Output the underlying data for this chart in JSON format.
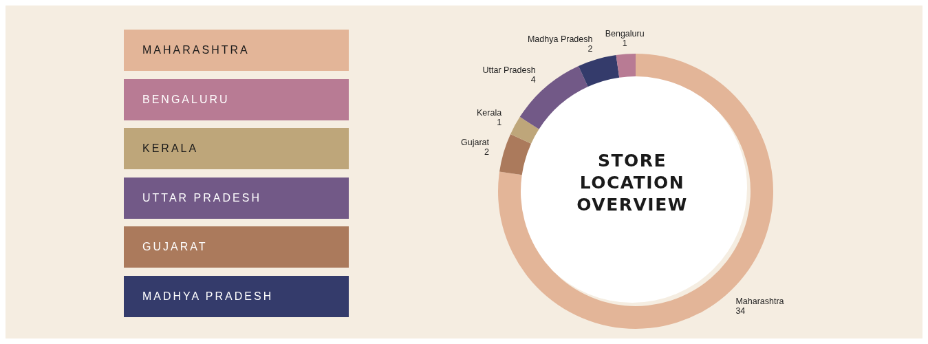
{
  "chart_data": [
    {
      "type": "other",
      "annotations": [
        "MAHARASHTRA",
        "BENGALURU",
        "KERALA",
        "UTTAR PRADESH",
        "GUJARAT",
        "MADHYA PRADESH"
      ],
      "colors": [
        "#e3b598",
        "#b87b94",
        "#bea67a",
        "#725987",
        "#ab7a5c",
        "#343b6b"
      ]
    },
    {
      "type": "donut",
      "title": "STORE LOCATION OVERVIEW",
      "categories": [
        "Maharashtra",
        "Gujarat",
        "Kerala",
        "Uttar Pradesh",
        "Madhya Pradesh",
        "Bengaluru"
      ],
      "values": [
        34,
        2,
        1,
        4,
        2,
        1
      ],
      "colors": [
        "#e3b598",
        "#ab7a5c",
        "#bea67a",
        "#725987",
        "#343b6b",
        "#b87b94"
      ],
      "data_labels": true
    }
  ]
}
